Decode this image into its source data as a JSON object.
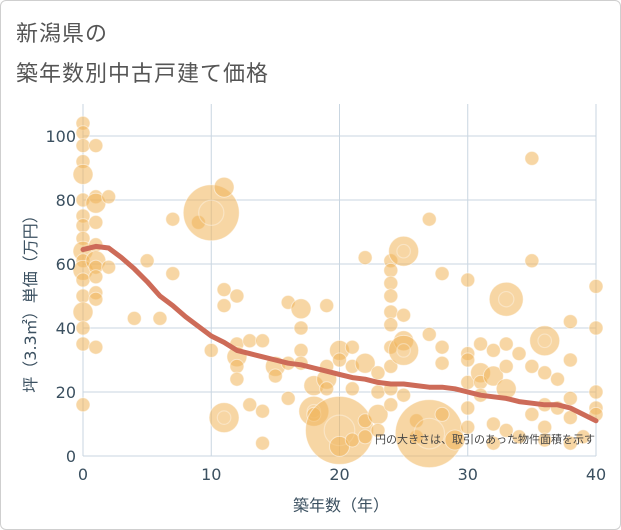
{
  "header": {
    "line1": "新潟県の",
    "line2": "築年数別中古戸建て価格"
  },
  "chart_data": {
    "type": "scatter",
    "title": "新潟県の築年数別中古戸建て価格",
    "xlabel": "築年数（年）",
    "ylabel": "坪（3.3㎡）単価（万円）",
    "xlim": [
      0,
      40
    ],
    "ylim": [
      0,
      110
    ],
    "xticks": [
      0,
      10,
      20,
      30,
      40
    ],
    "yticks": [
      0,
      20,
      40,
      60,
      80,
      100
    ],
    "grid": true,
    "note": "円の大きさは、取引のあった物件面積を示す",
    "colors": {
      "bubble": "#f0b45a",
      "line": "#cd6b58",
      "grid": "#c9d6e1"
    },
    "bubbles": [
      {
        "x": 0,
        "y": 104,
        "s": 1
      },
      {
        "x": 0,
        "y": 101,
        "s": 1
      },
      {
        "x": 0,
        "y": 97,
        "s": 1
      },
      {
        "x": 0,
        "y": 92,
        "s": 1
      },
      {
        "x": 0,
        "y": 88,
        "s": 2
      },
      {
        "x": 0,
        "y": 80,
        "s": 1
      },
      {
        "x": 0,
        "y": 75,
        "s": 1
      },
      {
        "x": 0,
        "y": 72,
        "s": 1
      },
      {
        "x": 0,
        "y": 68,
        "s": 1
      },
      {
        "x": 0,
        "y": 64,
        "s": 2
      },
      {
        "x": 0,
        "y": 61,
        "s": 1
      },
      {
        "x": 0,
        "y": 58,
        "s": 2
      },
      {
        "x": 0,
        "y": 55,
        "s": 1
      },
      {
        "x": 0,
        "y": 50,
        "s": 1
      },
      {
        "x": 0,
        "y": 45,
        "s": 2
      },
      {
        "x": 0,
        "y": 40,
        "s": 1
      },
      {
        "x": 0,
        "y": 35,
        "s": 1
      },
      {
        "x": 0,
        "y": 16,
        "s": 1
      },
      {
        "x": 1,
        "y": 97,
        "s": 1
      },
      {
        "x": 1,
        "y": 81,
        "s": 1
      },
      {
        "x": 1,
        "y": 79,
        "s": 2
      },
      {
        "x": 1,
        "y": 73,
        "s": 1
      },
      {
        "x": 1,
        "y": 66,
        "s": 1
      },
      {
        "x": 1,
        "y": 61,
        "s": 2
      },
      {
        "x": 1,
        "y": 59,
        "s": 1
      },
      {
        "x": 1,
        "y": 56,
        "s": 1
      },
      {
        "x": 1,
        "y": 51,
        "s": 1
      },
      {
        "x": 1,
        "y": 49,
        "s": 1
      },
      {
        "x": 1,
        "y": 34,
        "s": 1
      },
      {
        "x": 2,
        "y": 81,
        "s": 1
      },
      {
        "x": 2,
        "y": 59,
        "s": 1
      },
      {
        "x": 4,
        "y": 43,
        "s": 1
      },
      {
        "x": 5,
        "y": 61,
        "s": 1
      },
      {
        "x": 6,
        "y": 43,
        "s": 1
      },
      {
        "x": 7,
        "y": 74,
        "s": 1
      },
      {
        "x": 7,
        "y": 57,
        "s": 1
      },
      {
        "x": 9,
        "y": 73,
        "s": 1
      },
      {
        "x": 10,
        "y": 76,
        "s": 5
      },
      {
        "x": 10,
        "y": 33,
        "s": 1
      },
      {
        "x": 11,
        "y": 84,
        "s": 2
      },
      {
        "x": 11,
        "y": 52,
        "s": 1
      },
      {
        "x": 11,
        "y": 47,
        "s": 1
      },
      {
        "x": 11,
        "y": 12,
        "s": 3
      },
      {
        "x": 12,
        "y": 50,
        "s": 1
      },
      {
        "x": 12,
        "y": 35,
        "s": 1
      },
      {
        "x": 12,
        "y": 31,
        "s": 2
      },
      {
        "x": 12,
        "y": 28,
        "s": 1
      },
      {
        "x": 12,
        "y": 24,
        "s": 1
      },
      {
        "x": 13,
        "y": 16,
        "s": 1
      },
      {
        "x": 13,
        "y": 36,
        "s": 1
      },
      {
        "x": 14,
        "y": 36,
        "s": 1
      },
      {
        "x": 14,
        "y": 14,
        "s": 1
      },
      {
        "x": 14,
        "y": 4,
        "s": 1
      },
      {
        "x": 15,
        "y": 28,
        "s": 2
      },
      {
        "x": 15,
        "y": 25,
        "s": 1
      },
      {
        "x": 16,
        "y": 48,
        "s": 1
      },
      {
        "x": 16,
        "y": 29,
        "s": 1
      },
      {
        "x": 16,
        "y": 18,
        "s": 1
      },
      {
        "x": 17,
        "y": 46,
        "s": 2
      },
      {
        "x": 17,
        "y": 40,
        "s": 1
      },
      {
        "x": 17,
        "y": 33,
        "s": 1
      },
      {
        "x": 17,
        "y": 29,
        "s": 1
      },
      {
        "x": 18,
        "y": 22,
        "s": 2
      },
      {
        "x": 18,
        "y": 14,
        "s": 3
      },
      {
        "x": 18,
        "y": 13,
        "s": 1
      },
      {
        "x": 19,
        "y": 47,
        "s": 1
      },
      {
        "x": 19,
        "y": 28,
        "s": 1
      },
      {
        "x": 19,
        "y": 24,
        "s": 2
      },
      {
        "x": 19,
        "y": 21,
        "s": 1
      },
      {
        "x": 20,
        "y": 33,
        "s": 2
      },
      {
        "x": 20,
        "y": 30,
        "s": 1
      },
      {
        "x": 20,
        "y": 8,
        "s": 7
      },
      {
        "x": 20,
        "y": 3,
        "s": 2
      },
      {
        "x": 21,
        "y": 34,
        "s": 1
      },
      {
        "x": 21,
        "y": 28,
        "s": 1
      },
      {
        "x": 21,
        "y": 21,
        "s": 1
      },
      {
        "x": 21,
        "y": 5,
        "s": 1
      },
      {
        "x": 22,
        "y": 62,
        "s": 1
      },
      {
        "x": 22,
        "y": 29,
        "s": 2
      },
      {
        "x": 22,
        "y": 11,
        "s": 1
      },
      {
        "x": 22,
        "y": 6,
        "s": 1
      },
      {
        "x": 23,
        "y": 26,
        "s": 1
      },
      {
        "x": 23,
        "y": 20,
        "s": 1
      },
      {
        "x": 23,
        "y": 13,
        "s": 2
      },
      {
        "x": 23,
        "y": 8,
        "s": 1
      },
      {
        "x": 24,
        "y": 61,
        "s": 1
      },
      {
        "x": 24,
        "y": 58,
        "s": 1
      },
      {
        "x": 24,
        "y": 54,
        "s": 1
      },
      {
        "x": 24,
        "y": 50,
        "s": 1
      },
      {
        "x": 24,
        "y": 45,
        "s": 1
      },
      {
        "x": 24,
        "y": 41,
        "s": 1
      },
      {
        "x": 24,
        "y": 34,
        "s": 1
      },
      {
        "x": 24,
        "y": 28,
        "s": 1
      },
      {
        "x": 24,
        "y": 21,
        "s": 1
      },
      {
        "x": 24,
        "y": 16,
        "s": 1
      },
      {
        "x": 25,
        "y": 64,
        "s": 3
      },
      {
        "x": 25,
        "y": 44,
        "s": 1
      },
      {
        "x": 25,
        "y": 36,
        "s": 2
      },
      {
        "x": 25,
        "y": 33,
        "s": 3
      },
      {
        "x": 25,
        "y": 19,
        "s": 1
      },
      {
        "x": 26,
        "y": 11,
        "s": 1
      },
      {
        "x": 26,
        "y": 6,
        "s": 1
      },
      {
        "x": 27,
        "y": 74,
        "s": 1
      },
      {
        "x": 27,
        "y": 38,
        "s": 1
      },
      {
        "x": 27,
        "y": 7,
        "s": 7
      },
      {
        "x": 28,
        "y": 57,
        "s": 1
      },
      {
        "x": 28,
        "y": 34,
        "s": 1
      },
      {
        "x": 28,
        "y": 29,
        "s": 1
      },
      {
        "x": 28,
        "y": 13,
        "s": 1
      },
      {
        "x": 29,
        "y": 5,
        "s": 2
      },
      {
        "x": 30,
        "y": 55,
        "s": 1
      },
      {
        "x": 30,
        "y": 32,
        "s": 1
      },
      {
        "x": 30,
        "y": 30,
        "s": 1
      },
      {
        "x": 30,
        "y": 23,
        "s": 1
      },
      {
        "x": 30,
        "y": 15,
        "s": 1
      },
      {
        "x": 30,
        "y": 9,
        "s": 1
      },
      {
        "x": 31,
        "y": 35,
        "s": 1
      },
      {
        "x": 31,
        "y": 26,
        "s": 2
      },
      {
        "x": 31,
        "y": 23,
        "s": 1
      },
      {
        "x": 31,
        "y": 19,
        "s": 1
      },
      {
        "x": 32,
        "y": 33,
        "s": 1
      },
      {
        "x": 32,
        "y": 25,
        "s": 2
      },
      {
        "x": 32,
        "y": 10,
        "s": 1
      },
      {
        "x": 32,
        "y": 4,
        "s": 1
      },
      {
        "x": 33,
        "y": 49,
        "s": 4
      },
      {
        "x": 33,
        "y": 35,
        "s": 1
      },
      {
        "x": 33,
        "y": 28,
        "s": 1
      },
      {
        "x": 33,
        "y": 21,
        "s": 2
      },
      {
        "x": 33,
        "y": 8,
        "s": 1
      },
      {
        "x": 34,
        "y": 32,
        "s": 1
      },
      {
        "x": 34,
        "y": 6,
        "s": 1
      },
      {
        "x": 35,
        "y": 93,
        "s": 1
      },
      {
        "x": 35,
        "y": 61,
        "s": 1
      },
      {
        "x": 35,
        "y": 28,
        "s": 1
      },
      {
        "x": 35,
        "y": 13,
        "s": 1
      },
      {
        "x": 36,
        "y": 36,
        "s": 3
      },
      {
        "x": 36,
        "y": 26,
        "s": 1
      },
      {
        "x": 36,
        "y": 16,
        "s": 1
      },
      {
        "x": 36,
        "y": 9,
        "s": 1
      },
      {
        "x": 36,
        "y": 5,
        "s": 1
      },
      {
        "x": 37,
        "y": 24,
        "s": 1
      },
      {
        "x": 37,
        "y": 15,
        "s": 1
      },
      {
        "x": 38,
        "y": 42,
        "s": 1
      },
      {
        "x": 38,
        "y": 30,
        "s": 1
      },
      {
        "x": 38,
        "y": 18,
        "s": 1
      },
      {
        "x": 38,
        "y": 12,
        "s": 1
      },
      {
        "x": 38,
        "y": 4,
        "s": 1
      },
      {
        "x": 39,
        "y": 6,
        "s": 1
      },
      {
        "x": 40,
        "y": 53,
        "s": 1
      },
      {
        "x": 40,
        "y": 40,
        "s": 1
      },
      {
        "x": 40,
        "y": 20,
        "s": 1
      },
      {
        "x": 40,
        "y": 15,
        "s": 1
      },
      {
        "x": 40,
        "y": 13,
        "s": 1
      }
    ],
    "trend": {
      "x": [
        0,
        1,
        2,
        3,
        4,
        5,
        6,
        7,
        8,
        9,
        10,
        11,
        12,
        13,
        14,
        15,
        16,
        17,
        18,
        19,
        20,
        21,
        22,
        23,
        24,
        25,
        26,
        27,
        28,
        29,
        30,
        31,
        32,
        33,
        34,
        35,
        36,
        37,
        38,
        39,
        40
      ],
      "y": [
        64.5,
        65.5,
        65,
        62,
        58.5,
        54.5,
        50,
        47,
        43.5,
        40.5,
        37.5,
        35.5,
        33,
        32,
        31,
        30,
        29,
        28.5,
        27.5,
        26.5,
        25.5,
        24.5,
        24,
        23,
        22.5,
        22.5,
        22,
        21.5,
        21.5,
        21,
        20,
        19,
        18.5,
        18,
        17,
        16.5,
        16,
        16,
        15,
        13,
        11
      ]
    }
  }
}
